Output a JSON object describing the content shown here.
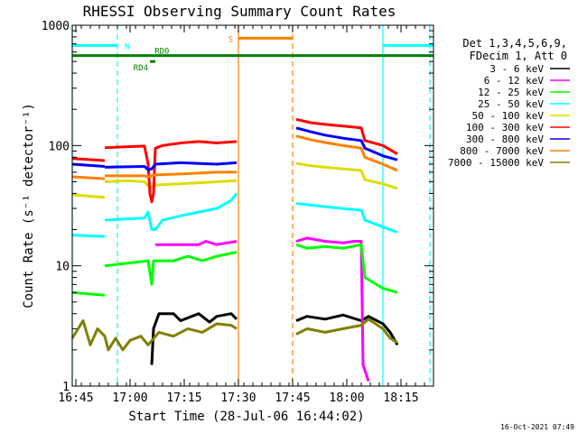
{
  "chart_data": {
    "type": "line",
    "title": "RHESSI Observing Summary Count Rates",
    "xlabel": "Start Time (28-Jul-06 16:44:02)",
    "ylabel": "Count Rate (s⁻¹ detector⁻¹)",
    "xscale": "time (minutes after 16:44:02)",
    "yscale": "log",
    "xlim": [
      0,
      100
    ],
    "ylim": [
      1,
      1000
    ],
    "x_ticks": [
      {
        "t": 1,
        "label": "16:45"
      },
      {
        "t": 16,
        "label": "17:00"
      },
      {
        "t": 31,
        "label": "17:15"
      },
      {
        "t": 46,
        "label": "17:30"
      },
      {
        "t": 61,
        "label": "17:45"
      },
      {
        "t": 76,
        "label": "18:00"
      },
      {
        "t": 91,
        "label": "18:15"
      }
    ],
    "y_ticks": [
      {
        "v": 1,
        "label": "1"
      },
      {
        "v": 10,
        "label": "10"
      },
      {
        "v": 100,
        "label": "100"
      },
      {
        "v": 1000,
        "label": "1000"
      }
    ],
    "legend_header": [
      "Det 1,3,4,5,6,9,",
      "FDecim 1, Att 0"
    ],
    "legend_position": "top-right",
    "series": [
      {
        "name": "3 - 6 keV",
        "color": "#000000",
        "segments": [
          [
            [
              22,
              1.5
            ],
            [
              22.5,
              3
            ],
            [
              24,
              4
            ],
            [
              28,
              4
            ],
            [
              30,
              3.5
            ],
            [
              35,
              4
            ],
            [
              38,
              3.4
            ],
            [
              40,
              3.8
            ],
            [
              44,
              4
            ],
            [
              45.5,
              3.6
            ]
          ],
          [
            [
              62,
              3.5
            ],
            [
              65,
              3.8
            ],
            [
              70,
              3.6
            ],
            [
              75,
              3.9
            ],
            [
              80,
              3.5
            ],
            [
              82,
              3.8
            ],
            [
              86,
              3.3
            ],
            [
              88,
              2.8
            ],
            [
              90,
              2.2
            ]
          ]
        ]
      },
      {
        "name": "6 - 12 keV",
        "color": "#ff00ff",
        "segments": [
          [
            [
              23,
              15
            ],
            [
              35,
              15
            ],
            [
              37,
              16
            ],
            [
              40,
              15
            ],
            [
              45.5,
              16
            ]
          ],
          [
            [
              62,
              16
            ],
            [
              65,
              17
            ],
            [
              70,
              16
            ],
            [
              75,
              15.5
            ],
            [
              78,
              16
            ],
            [
              80,
              16
            ],
            [
              80.5,
              1.5
            ],
            [
              82,
              1.1
            ]
          ]
        ]
      },
      {
        "name": "12 - 25 keV",
        "color": "#00ff00",
        "segments": [
          [
            [
              0,
              6
            ],
            [
              9,
              5.7
            ]
          ],
          [
            [
              9,
              10
            ],
            [
              21,
              11
            ],
            [
              22,
              7
            ],
            [
              22.5,
              11
            ],
            [
              28,
              11
            ],
            [
              32,
              12
            ],
            [
              36,
              11
            ],
            [
              40,
              12
            ],
            [
              45.5,
              13
            ]
          ],
          [
            [
              62,
              15
            ],
            [
              65,
              14
            ],
            [
              70,
              14.5
            ],
            [
              75,
              14
            ],
            [
              80,
              15
            ],
            [
              81,
              8
            ],
            [
              86,
              6.5
            ],
            [
              90,
              6
            ]
          ]
        ]
      },
      {
        "name": "25 - 50 keV",
        "color": "#00ffff",
        "segments": [
          [
            [
              0,
              18
            ],
            [
              9,
              17.5
            ]
          ],
          [
            [
              9,
              24
            ],
            [
              20,
              25
            ],
            [
              21,
              28
            ],
            [
              22,
              20
            ],
            [
              23,
              20
            ],
            [
              25,
              24
            ],
            [
              30,
              26
            ],
            [
              35,
              28
            ],
            [
              40,
              30
            ],
            [
              44,
              35
            ],
            [
              45.5,
              40
            ]
          ],
          [
            [
              62,
              33
            ],
            [
              66,
              32
            ],
            [
              70,
              31
            ],
            [
              75,
              30
            ],
            [
              80,
              29
            ],
            [
              81,
              24
            ],
            [
              86,
              21
            ],
            [
              90,
              19
            ]
          ]
        ]
      },
      {
        "name": "50 - 100 keV",
        "color": "#dddd00",
        "segments": [
          [
            [
              0,
              39
            ],
            [
              9,
              37
            ]
          ],
          [
            [
              9,
              50
            ],
            [
              15,
              51
            ],
            [
              20,
              50
            ],
            [
              21,
              46
            ],
            [
              22,
              45
            ],
            [
              23,
              47
            ],
            [
              30,
              48
            ],
            [
              40,
              50
            ],
            [
              45.5,
              51
            ]
          ],
          [
            [
              62,
              71
            ],
            [
              66,
              68
            ],
            [
              70,
              66
            ],
            [
              75,
              64
            ],
            [
              80,
              62
            ],
            [
              81,
              52
            ],
            [
              86,
              48
            ],
            [
              90,
              44
            ]
          ]
        ]
      },
      {
        "name": "100 - 300 keV",
        "color": "#ff0000",
        "segments": [
          [
            [
              0,
              78
            ],
            [
              9,
              75
            ]
          ],
          [
            [
              9,
              96
            ],
            [
              20,
              99
            ],
            [
              21,
              70
            ],
            [
              21.5,
              40
            ],
            [
              22,
              34
            ],
            [
              22.5,
              40
            ],
            [
              23,
              95
            ],
            [
              25,
              100
            ],
            [
              30,
              105
            ],
            [
              35,
              108
            ],
            [
              40,
              105
            ],
            [
              45.5,
              108
            ]
          ],
          [
            [
              62,
              165
            ],
            [
              66,
              155
            ],
            [
              70,
              150
            ],
            [
              75,
              145
            ],
            [
              80,
              140
            ],
            [
              81,
              110
            ],
            [
              86,
              100
            ],
            [
              90,
              85
            ]
          ]
        ]
      },
      {
        "name": "300 - 800 keV",
        "color": "#0000ff",
        "segments": [
          [
            [
              0,
              70
            ],
            [
              9,
              67
            ]
          ],
          [
            [
              9,
              66
            ],
            [
              20,
              67
            ],
            [
              21,
              63
            ],
            [
              22,
              64
            ],
            [
              23,
              70
            ],
            [
              30,
              72
            ],
            [
              40,
              70
            ],
            [
              45.5,
              72
            ]
          ],
          [
            [
              62,
              140
            ],
            [
              66,
              130
            ],
            [
              70,
              122
            ],
            [
              75,
              115
            ],
            [
              80,
              110
            ],
            [
              81,
              95
            ],
            [
              86,
              82
            ],
            [
              90,
              76
            ]
          ]
        ]
      },
      {
        "name": "800 - 7000 keV",
        "color": "#ff8000",
        "segments": [
          [
            [
              0,
              55
            ],
            [
              9,
              53
            ]
          ],
          [
            [
              9,
              56
            ],
            [
              20,
              56
            ],
            [
              21,
              55
            ],
            [
              23,
              57
            ],
            [
              30,
              58
            ],
            [
              40,
              60
            ],
            [
              45.5,
              60
            ]
          ],
          [
            [
              62,
              120
            ],
            [
              66,
              112
            ],
            [
              70,
              106
            ],
            [
              75,
              100
            ],
            [
              80,
              95
            ],
            [
              81,
              80
            ],
            [
              86,
              70
            ],
            [
              90,
              62
            ]
          ]
        ]
      },
      {
        "name": "7000 - 15000 keV",
        "color": "#808000",
        "segments": [
          [
            [
              0,
              2.5
            ],
            [
              3,
              3.5
            ],
            [
              5,
              2.2
            ],
            [
              7,
              3
            ],
            [
              9,
              2.6
            ],
            [
              10,
              2
            ],
            [
              12,
              2.5
            ],
            [
              14,
              2
            ],
            [
              16,
              2.4
            ],
            [
              19,
              2.6
            ],
            [
              21,
              2.2
            ],
            [
              24,
              2.8
            ],
            [
              28,
              2.6
            ],
            [
              32,
              3
            ],
            [
              36,
              2.8
            ],
            [
              40,
              3.3
            ],
            [
              44,
              3.2
            ],
            [
              45.5,
              3
            ]
          ],
          [
            [
              62,
              2.7
            ],
            [
              65,
              3
            ],
            [
              70,
              2.8
            ],
            [
              75,
              3
            ],
            [
              80,
              3.2
            ],
            [
              82,
              3.6
            ],
            [
              86,
              3
            ],
            [
              88,
              2.5
            ],
            [
              90,
              2.3
            ]
          ]
        ]
      }
    ],
    "flags": [
      {
        "label": "N",
        "color": "#00ffff",
        "y": 680,
        "segments": [
          [
            0,
            12.5
          ],
          [
            86,
            100
          ]
        ]
      },
      {
        "label": "S",
        "color": "#ff8000",
        "y": 780,
        "segments": [
          [
            46,
            61
          ]
        ]
      },
      {
        "label": "RD0",
        "color": "#008000",
        "y": 560,
        "segments": [
          [
            0,
            100
          ]
        ]
      },
      {
        "label": "RD4",
        "color": "#008000",
        "y": 500,
        "segments": [
          [
            21.5,
            23
          ]
        ]
      }
    ],
    "vlines": [
      {
        "t": 0,
        "color": "#00ffff",
        "style": "solid"
      },
      {
        "t": 12.5,
        "color": "#00ffff",
        "style": "dashed"
      },
      {
        "t": 46,
        "color": "#ff8000",
        "style": "solid"
      },
      {
        "t": 61,
        "color": "#ff8000",
        "style": "dashed"
      },
      {
        "t": 86,
        "color": "#00ffff",
        "style": "solid"
      },
      {
        "t": 99,
        "color": "#00ffff",
        "style": "dashed"
      }
    ],
    "timestamp": "16-Oct-2021 07:49"
  }
}
